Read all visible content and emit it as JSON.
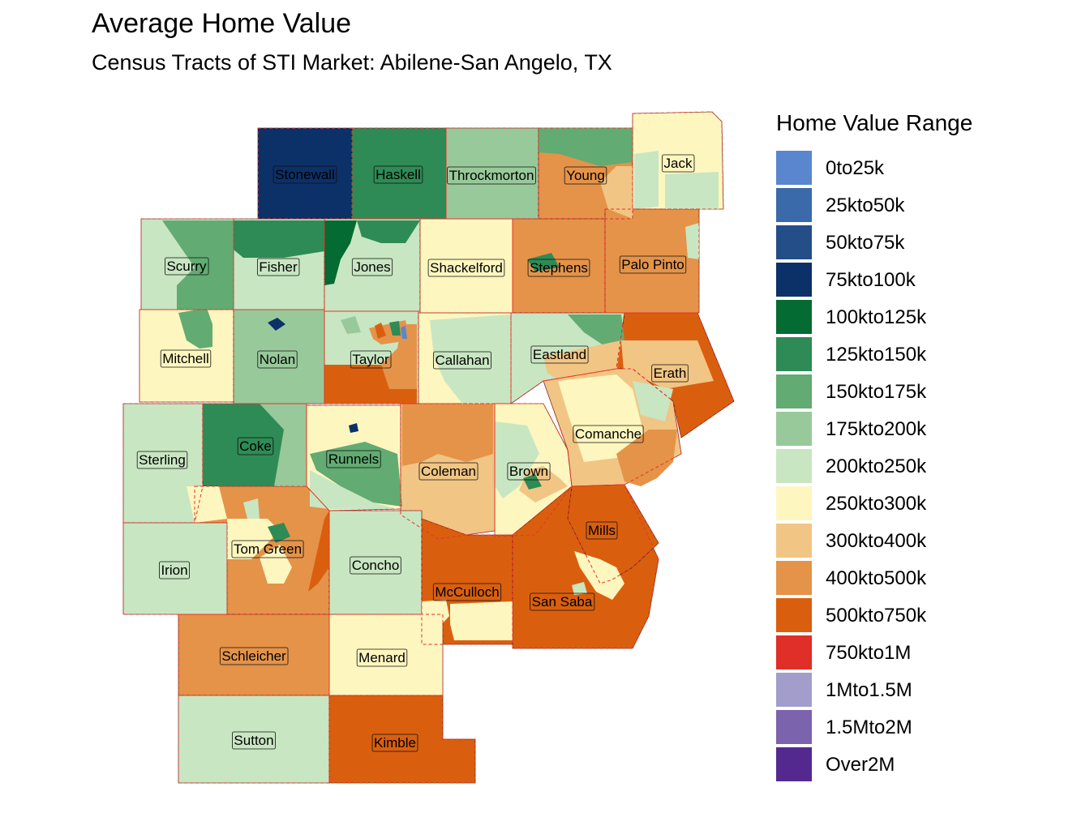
{
  "title": "Average Home Value",
  "subtitle": "Census Tracts of STI Market: Abilene-San Angelo, TX",
  "legend": {
    "title": "Home Value Range",
    "items": [
      {
        "label": "0to25k",
        "color": "#5a86cf"
      },
      {
        "label": "25kto50k",
        "color": "#3a6aaa"
      },
      {
        "label": "50kto75k",
        "color": "#244e88"
      },
      {
        "label": "75kto100k",
        "color": "#0c3068"
      },
      {
        "label": "100kto125k",
        "color": "#046b32"
      },
      {
        "label": "125kto150k",
        "color": "#2e8b55"
      },
      {
        "label": "150kto175k",
        "color": "#62ab73"
      },
      {
        "label": "175kto200k",
        "color": "#98c99a"
      },
      {
        "label": "200kto250k",
        "color": "#c8e6c2"
      },
      {
        "label": "250kto300k",
        "color": "#fef6bf"
      },
      {
        "label": "300kto400k",
        "color": "#f1c584"
      },
      {
        "label": "400kto500k",
        "color": "#e49349"
      },
      {
        "label": "500kto750k",
        "color": "#d95f0f"
      },
      {
        "label": "750kto1M",
        "color": "#e02e28"
      },
      {
        "label": "1Mto1.5M",
        "color": "#a29dcb"
      },
      {
        "label": "1.5Mto2M",
        "color": "#7c63ad"
      },
      {
        "label": "Over2M",
        "color": "#54298f"
      }
    ]
  },
  "counties": [
    {
      "name": "Stonewall",
      "range": "75kto100k"
    },
    {
      "name": "Haskell",
      "range": "125kto150k"
    },
    {
      "name": "Throckmorton",
      "range": "175kto200k"
    },
    {
      "name": "Young",
      "range": "400kto500k"
    },
    {
      "name": "Jack",
      "range": "250kto300k"
    },
    {
      "name": "Scurry",
      "range": "200kto250k"
    },
    {
      "name": "Fisher",
      "range": "200kto250k"
    },
    {
      "name": "Jones",
      "range": "200kto250k"
    },
    {
      "name": "Shackelford",
      "range": "250kto300k"
    },
    {
      "name": "Stephens",
      "range": "400kto500k"
    },
    {
      "name": "Palo Pinto",
      "range": "400kto500k"
    },
    {
      "name": "Mitchell",
      "range": "250kto300k"
    },
    {
      "name": "Nolan",
      "range": "175kto200k"
    },
    {
      "name": "Taylor",
      "range": "200kto250k"
    },
    {
      "name": "Callahan",
      "range": "250kto300k"
    },
    {
      "name": "Eastland",
      "range": "200kto250k"
    },
    {
      "name": "Erath",
      "range": "500kto750k"
    },
    {
      "name": "Sterling",
      "range": "200kto250k"
    },
    {
      "name": "Coke",
      "range": "125kto150k"
    },
    {
      "name": "Runnels",
      "range": "250kto300k"
    },
    {
      "name": "Coleman",
      "range": "300kto400k"
    },
    {
      "name": "Brown",
      "range": "250kto300k"
    },
    {
      "name": "Comanche",
      "range": "300kto400k"
    },
    {
      "name": "Tom Green",
      "range": "400kto500k"
    },
    {
      "name": "Irion",
      "range": "200kto250k"
    },
    {
      "name": "Concho",
      "range": "200kto250k"
    },
    {
      "name": "McCulloch",
      "range": "500kto750k"
    },
    {
      "name": "San Saba",
      "range": "500kto750k"
    },
    {
      "name": "Mills",
      "range": "500kto750k"
    },
    {
      "name": "Schleicher",
      "range": "400kto500k"
    },
    {
      "name": "Menard",
      "range": "250kto300k"
    },
    {
      "name": "Sutton",
      "range": "200kto250k"
    },
    {
      "name": "Kimble",
      "range": "500kto750k"
    }
  ]
}
